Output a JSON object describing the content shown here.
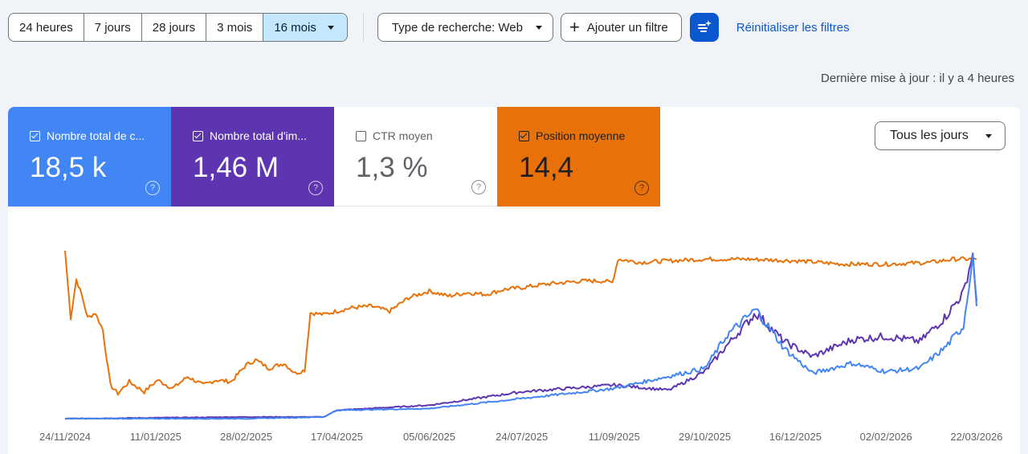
{
  "toolbar": {
    "ranges": [
      "24 heures",
      "7 jours",
      "28 jours",
      "3 mois",
      "16 mois"
    ],
    "active_range": "16 mois",
    "search_type": "Type de recherche: Web",
    "add_filter": "Ajouter un filtre",
    "reset": "Réinitialiser les filtres"
  },
  "updated": "Dernière mise à jour : il y a 4 heures",
  "metrics": [
    {
      "label": "Nombre total de c...",
      "value": "18,5 k",
      "checked": true,
      "color": "#4285f4"
    },
    {
      "label": "Nombre total d'im...",
      "value": "1,46 M",
      "checked": true,
      "color": "#5e35b1"
    },
    {
      "label": "CTR moyen",
      "value": "1,3 %",
      "checked": false,
      "color": "#ffffff"
    },
    {
      "label": "Position moyenne",
      "value": "14,4",
      "checked": true,
      "color": "#e8710a"
    }
  ],
  "granularity": "Tous les jours",
  "icons": {
    "filter": "filter-sparkle-icon",
    "help": "help-circle-icon",
    "check": "checkbox-icon"
  },
  "chart_data": {
    "type": "line",
    "x_ticks": [
      "24/11/2024",
      "11/01/2025",
      "28/02/2025",
      "17/04/2025",
      "05/06/2025",
      "24/07/2025",
      "11/09/2025",
      "29/10/2025",
      "16/12/2025",
      "02/02/2026",
      "22/03/2026"
    ],
    "x_range": [
      "24/11/2024",
      "22/03/2026"
    ],
    "grid": false,
    "series": [
      {
        "name": "Position moyenne",
        "color": "#e8710a",
        "axis": "reversed, unlabeled",
        "points": [
          [
            "24/11/2024",
            1.0
          ],
          [
            "27/11/2024",
            0.6
          ],
          [
            "30/11/2024",
            0.83
          ],
          [
            "03/12/2024",
            0.73
          ],
          [
            "06/12/2024",
            0.6
          ],
          [
            "10/12/2024",
            0.63
          ],
          [
            "14/12/2024",
            0.53
          ],
          [
            "18/12/2024",
            0.2
          ],
          [
            "22/12/2024",
            0.15
          ],
          [
            "28/12/2024",
            0.22
          ],
          [
            "05/01/2025",
            0.16
          ],
          [
            "12/01/2025",
            0.23
          ],
          [
            "20/01/2025",
            0.18
          ],
          [
            "28/01/2025",
            0.25
          ],
          [
            "05/02/2025",
            0.2
          ],
          [
            "12/02/2025",
            0.23
          ],
          [
            "20/02/2025",
            0.22
          ],
          [
            "28/02/2025",
            0.32
          ],
          [
            "05/03/2025",
            0.35
          ],
          [
            "12/03/2025",
            0.3
          ],
          [
            "20/03/2025",
            0.33
          ],
          [
            "26/03/2025",
            0.27
          ],
          [
            "31/03/2025",
            0.29
          ],
          [
            "03/04/2025",
            0.63
          ],
          [
            "10/04/2025",
            0.62
          ],
          [
            "17/04/2025",
            0.64
          ],
          [
            "25/04/2025",
            0.66
          ],
          [
            "05/05/2025",
            0.67
          ],
          [
            "15/05/2025",
            0.64
          ],
          [
            "25/05/2025",
            0.72
          ],
          [
            "05/06/2025",
            0.76
          ],
          [
            "15/06/2025",
            0.73
          ],
          [
            "25/06/2025",
            0.75
          ],
          [
            "05/07/2025",
            0.74
          ],
          [
            "15/07/2025",
            0.77
          ],
          [
            "24/07/2025",
            0.78
          ],
          [
            "05/08/2025",
            0.8
          ],
          [
            "15/08/2025",
            0.81
          ],
          [
            "25/08/2025",
            0.82
          ],
          [
            "05/09/2025",
            0.82
          ],
          [
            "10/09/2025",
            0.81
          ],
          [
            "13/09/2025",
            0.95
          ],
          [
            "25/09/2025",
            0.93
          ],
          [
            "10/10/2025",
            0.94
          ],
          [
            "29/10/2025",
            0.95
          ],
          [
            "20/11/2025",
            0.95
          ],
          [
            "16/12/2025",
            0.94
          ],
          [
            "10/01/2026",
            0.92
          ],
          [
            "02/02/2026",
            0.92
          ],
          [
            "25/02/2026",
            0.93
          ],
          [
            "10/03/2026",
            0.95
          ],
          [
            "22/03/2026",
            0.95
          ]
        ]
      },
      {
        "name": "Nombre total d'impressions",
        "color": "#5e35b1",
        "axis": "unlabeled",
        "points": [
          [
            "24/11/2024",
            0.0
          ],
          [
            "28/02/2025",
            0.01
          ],
          [
            "10/04/2025",
            0.01
          ],
          [
            "17/04/2025",
            0.05
          ],
          [
            "05/06/2025",
            0.08
          ],
          [
            "24/07/2025",
            0.16
          ],
          [
            "11/09/2025",
            0.2
          ],
          [
            "10/10/2025",
            0.17
          ],
          [
            "29/10/2025",
            0.28
          ],
          [
            "10/11/2025",
            0.44
          ],
          [
            "25/11/2025",
            0.63
          ],
          [
            "10/12/2025",
            0.46
          ],
          [
            "25/12/2025",
            0.37
          ],
          [
            "15/01/2026",
            0.47
          ],
          [
            "02/02/2026",
            0.49
          ],
          [
            "20/02/2026",
            0.46
          ],
          [
            "05/03/2026",
            0.6
          ],
          [
            "15/03/2026",
            0.75
          ],
          [
            "20/03/2026",
            0.98
          ],
          [
            "22/03/2026",
            0.7
          ]
        ]
      },
      {
        "name": "Nombre total de clics",
        "color": "#4285f4",
        "axis": "unlabeled",
        "points": [
          [
            "24/11/2024",
            0.0
          ],
          [
            "28/02/2025",
            0.0
          ],
          [
            "10/04/2025",
            0.01
          ],
          [
            "17/04/2025",
            0.05
          ],
          [
            "05/06/2025",
            0.06
          ],
          [
            "24/07/2025",
            0.12
          ],
          [
            "11/09/2025",
            0.18
          ],
          [
            "29/10/2025",
            0.3
          ],
          [
            "10/11/2025",
            0.5
          ],
          [
            "25/11/2025",
            0.65
          ],
          [
            "10/12/2025",
            0.42
          ],
          [
            "25/12/2025",
            0.27
          ],
          [
            "15/01/2026",
            0.33
          ],
          [
            "02/02/2026",
            0.28
          ],
          [
            "20/02/2026",
            0.3
          ],
          [
            "05/03/2026",
            0.42
          ],
          [
            "15/03/2026",
            0.55
          ],
          [
            "20/03/2026",
            0.97
          ],
          [
            "22/03/2026",
            0.67
          ]
        ]
      }
    ]
  }
}
